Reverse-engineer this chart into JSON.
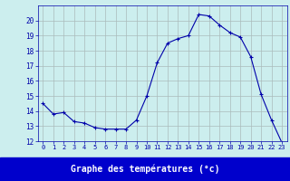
{
  "hours": [
    0,
    1,
    2,
    3,
    4,
    5,
    6,
    7,
    8,
    9,
    10,
    11,
    12,
    13,
    14,
    15,
    16,
    17,
    18,
    19,
    20,
    21,
    22,
    23
  ],
  "temperatures": [
    14.5,
    13.8,
    13.9,
    13.3,
    13.2,
    12.9,
    12.8,
    12.8,
    12.8,
    13.4,
    15.0,
    17.2,
    18.5,
    18.8,
    19.0,
    20.4,
    20.3,
    19.7,
    19.2,
    18.9,
    17.6,
    15.1,
    13.4,
    11.9
  ],
  "line_color": "#0000aa",
  "marker": "+",
  "marker_size": 3,
  "bg_color": "#cceeee",
  "grid_color": "#aabbbb",
  "xlabel": "Graphe des températures (°c)",
  "tick_color": "#0000aa",
  "ylim": [
    12,
    21
  ],
  "yticks": [
    12,
    13,
    14,
    15,
    16,
    17,
    18,
    19,
    20
  ],
  "label_bg_color": "#0000cc",
  "label_text_color": "#ffffff"
}
